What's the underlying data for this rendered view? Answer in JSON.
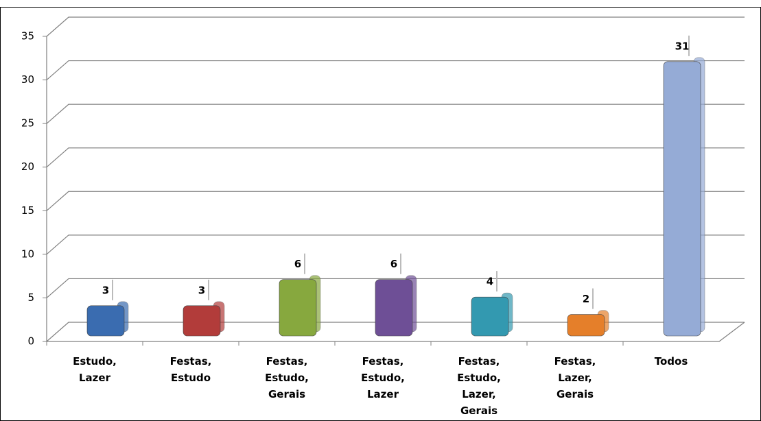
{
  "chart_data": {
    "type": "bar",
    "categories": [
      "Estudo, Lazer",
      "Festas, Estudo",
      "Festas, Estudo, Gerais",
      "Festas, Estudo, Lazer",
      "Festas, Estudo, Lazer, Gerais",
      "Festas, Lazer, Gerais",
      "Todos"
    ],
    "values": [
      3,
      3,
      6,
      6,
      4,
      2,
      31
    ],
    "colors": [
      "#3a6cb0",
      "#b23c3a",
      "#87a83e",
      "#6e4f96",
      "#3399b0",
      "#e57f2a",
      "#95abd6"
    ],
    "ylim": [
      0,
      35
    ],
    "yticks": [
      0,
      5,
      10,
      15,
      20,
      25,
      30,
      35
    ],
    "grid": true
  }
}
